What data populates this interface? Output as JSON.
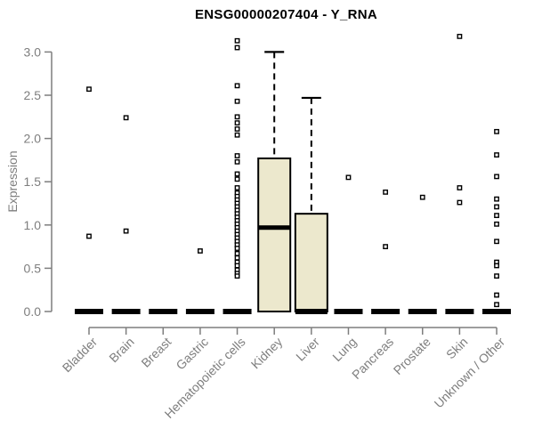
{
  "title": "ENSG00000207404 - Y_RNA",
  "chart_data": {
    "type": "boxplot",
    "title": "ENSG00000207404 - Y_RNA",
    "xlabel": "",
    "ylabel": "Expression",
    "ylim": [
      0,
      3.2
    ],
    "yticks": [
      0.0,
      0.5,
      1.0,
      1.5,
      2.0,
      2.5,
      3.0
    ],
    "grid": false,
    "legend": false,
    "colors": {
      "box_fill": "#ece8cd",
      "box_stroke": "#000000",
      "median": "#000000",
      "axis": "#7e7e7e",
      "outlier_stroke": "#000000",
      "outlier_fill": "#ffffff"
    },
    "categories": [
      "Bladder",
      "Brain",
      "Breast",
      "Gastric",
      "Hematopoietic cells",
      "Kidney",
      "Liver",
      "Lung",
      "Pancreas",
      "Prostate",
      "Skin",
      "Unknown / Other"
    ],
    "boxes": [
      {
        "category": "Bladder",
        "low": 0,
        "q1": 0,
        "median": 0,
        "q3": 0,
        "high": 0,
        "outliers": [
          2.57,
          0.87
        ]
      },
      {
        "category": "Brain",
        "low": 0,
        "q1": 0,
        "median": 0,
        "q3": 0,
        "high": 0,
        "outliers": [
          2.24,
          0.93
        ]
      },
      {
        "category": "Breast",
        "low": 0,
        "q1": 0,
        "median": 0,
        "q3": 0,
        "high": 0,
        "outliers": []
      },
      {
        "category": "Gastric",
        "low": 0,
        "q1": 0,
        "median": 0,
        "q3": 0,
        "high": 0,
        "outliers": [
          0.7
        ]
      },
      {
        "category": "Hematopoietic cells",
        "low": 0,
        "q1": 0,
        "median": 0,
        "q3": 0,
        "high": 0,
        "outliers": [
          3.13,
          3.05,
          2.61,
          2.43,
          2.25,
          2.18,
          2.11,
          2.04,
          1.8,
          1.73,
          1.59,
          1.53,
          1.43,
          1.37,
          1.33,
          1.29,
          1.25,
          1.21,
          1.17,
          1.13,
          1.09,
          1.05,
          1.01,
          0.97,
          0.93,
          0.89,
          0.85,
          0.81,
          0.77,
          0.73,
          0.67,
          0.62,
          0.57,
          0.53,
          0.48,
          0.44,
          0.41
        ]
      },
      {
        "category": "Kidney",
        "low": 0,
        "q1": 0,
        "median": 0.97,
        "q3": 1.77,
        "high": 3.0,
        "outliers": []
      },
      {
        "category": "Liver",
        "low": 0,
        "q1": 0,
        "median": 0,
        "q3": 1.13,
        "high": 2.47,
        "outliers": []
      },
      {
        "category": "Lung",
        "low": 0,
        "q1": 0,
        "median": 0,
        "q3": 0,
        "high": 0,
        "outliers": [
          1.55
        ]
      },
      {
        "category": "Pancreas",
        "low": 0,
        "q1": 0,
        "median": 0,
        "q3": 0,
        "high": 0,
        "outliers": [
          1.38,
          0.75
        ]
      },
      {
        "category": "Prostate",
        "low": 0,
        "q1": 0,
        "median": 0,
        "q3": 0,
        "high": 0,
        "outliers": [
          1.32
        ]
      },
      {
        "category": "Skin",
        "low": 0,
        "q1": 0,
        "median": 0,
        "q3": 0,
        "high": 0,
        "outliers": [
          3.18,
          1.43,
          1.26
        ]
      },
      {
        "category": "Unknown / Other",
        "low": 0,
        "q1": 0,
        "median": 0,
        "q3": 0,
        "high": 0,
        "outliers": [
          2.08,
          1.81,
          1.56,
          1.3,
          1.21,
          1.11,
          1.01,
          0.81,
          0.57,
          0.53,
          0.41,
          0.19,
          0.08
        ]
      }
    ]
  }
}
